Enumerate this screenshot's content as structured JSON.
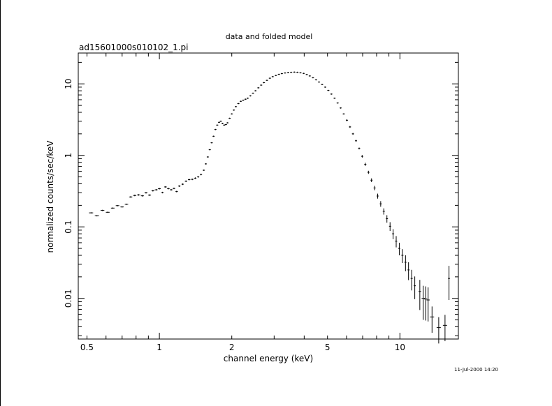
{
  "chart_data": {
    "type": "scatter",
    "title": "data and folded model",
    "subtitle": "ad15601000s010102_1.pi",
    "xlabel": "channel energy (keV)",
    "ylabel": "normalized counts/sec/keV",
    "xscale": "log",
    "yscale": "log",
    "xlim": [
      0.46,
      17.5
    ],
    "ylim": [
      0.0027,
      27
    ],
    "grid": false,
    "x_ticks": [
      {
        "v": 0.5,
        "label": "0.5"
      },
      {
        "v": 1,
        "label": "1"
      },
      {
        "v": 2,
        "label": "2"
      },
      {
        "v": 5,
        "label": "5"
      },
      {
        "v": 10,
        "label": "10"
      }
    ],
    "y_ticks": [
      {
        "v": 0.01,
        "label": "0.01"
      },
      {
        "v": 0.1,
        "label": "0.1"
      },
      {
        "v": 1,
        "label": "1"
      },
      {
        "v": 10,
        "label": "10"
      }
    ],
    "series": [
      {
        "color": "#000000",
        "points": [
          [
            0.52,
            0.157,
            0.02,
            0.02
          ],
          [
            0.55,
            0.143,
            0.02,
            0.02
          ],
          [
            0.58,
            0.17,
            0.018,
            0.02
          ],
          [
            0.61,
            0.16,
            0.018,
            0.02
          ],
          [
            0.64,
            0.183,
            0.017,
            0.02
          ],
          [
            0.67,
            0.198,
            0.017,
            0.02
          ],
          [
            0.7,
            0.19,
            0.016,
            0.02
          ],
          [
            0.73,
            0.207,
            0.016,
            0.02
          ],
          [
            0.76,
            0.262,
            0.015,
            0.025
          ],
          [
            0.79,
            0.275,
            0.015,
            0.025
          ],
          [
            0.82,
            0.28,
            0.015,
            0.025
          ],
          [
            0.85,
            0.272,
            0.014,
            0.025
          ],
          [
            0.88,
            0.3,
            0.014,
            0.025
          ],
          [
            0.91,
            0.278,
            0.014,
            0.025
          ],
          [
            0.94,
            0.32,
            0.013,
            0.025
          ],
          [
            0.97,
            0.33,
            0.013,
            0.025
          ],
          [
            1.0,
            0.342,
            0.013,
            0.025
          ],
          [
            1.03,
            0.302,
            0.012,
            0.025
          ],
          [
            1.06,
            0.362,
            0.012,
            0.025
          ],
          [
            1.09,
            0.343,
            0.012,
            0.025
          ],
          [
            1.12,
            0.33,
            0.012,
            0.025
          ],
          [
            1.15,
            0.345,
            0.012,
            0.025
          ],
          [
            1.18,
            0.312,
            0.011,
            0.025
          ],
          [
            1.21,
            0.372,
            0.011,
            0.025
          ],
          [
            1.25,
            0.395,
            0.011,
            0.025
          ],
          [
            1.29,
            0.435,
            0.011,
            0.025
          ],
          [
            1.33,
            0.458,
            0.011,
            0.025
          ],
          [
            1.37,
            0.462,
            0.011,
            0.025
          ],
          [
            1.41,
            0.48,
            0.011,
            0.025
          ],
          [
            1.45,
            0.5,
            0.01,
            0.025
          ],
          [
            1.49,
            0.54,
            0.01,
            0.025
          ],
          [
            1.53,
            0.62,
            0.01,
            0.02
          ],
          [
            1.56,
            0.76,
            0.01,
            0.02
          ],
          [
            1.59,
            0.95,
            0.01,
            0.02
          ],
          [
            1.62,
            1.2,
            0.01,
            0.02
          ],
          [
            1.65,
            1.5,
            0.01,
            0.02
          ],
          [
            1.68,
            1.85,
            0.01,
            0.02
          ],
          [
            1.71,
            2.3,
            0.01,
            0.02
          ],
          [
            1.74,
            2.65,
            0.01,
            0.02
          ],
          [
            1.77,
            2.9,
            0.01,
            0.02
          ],
          [
            1.8,
            3.0,
            0.01,
            0.02
          ],
          [
            1.83,
            2.8,
            0.01,
            0.02
          ],
          [
            1.86,
            2.65,
            0.01,
            0.02
          ],
          [
            1.89,
            2.7,
            0.01,
            0.02
          ],
          [
            1.92,
            2.85,
            0.01,
            0.02
          ],
          [
            1.96,
            3.3,
            0.01,
            0.02
          ],
          [
            2.0,
            3.8,
            0.01,
            0.02
          ],
          [
            2.04,
            4.3,
            0.01,
            0.02
          ],
          [
            2.08,
            4.8,
            0.01,
            0.02
          ],
          [
            2.13,
            5.3,
            0.01,
            0.02
          ],
          [
            2.18,
            5.7,
            0.01,
            0.02
          ],
          [
            2.23,
            5.9,
            0.01,
            0.02
          ],
          [
            2.28,
            6.1,
            0.01,
            0.02
          ],
          [
            2.33,
            6.3,
            0.01,
            0.02
          ],
          [
            2.39,
            6.8,
            0.01,
            0.02
          ],
          [
            2.45,
            7.4,
            0.01,
            0.02
          ],
          [
            2.51,
            8.0,
            0.01,
            0.02
          ],
          [
            2.58,
            8.8,
            0.01,
            0.02
          ],
          [
            2.65,
            9.6,
            0.01,
            0.02
          ],
          [
            2.72,
            10.4,
            0.01,
            0.02
          ],
          [
            2.8,
            11.2,
            0.01,
            0.02
          ],
          [
            2.88,
            12.0,
            0.01,
            0.02
          ],
          [
            2.96,
            12.6,
            0.01,
            0.02
          ],
          [
            3.05,
            13.1,
            0.01,
            0.02
          ],
          [
            3.14,
            13.6,
            0.01,
            0.02
          ],
          [
            3.23,
            13.9,
            0.01,
            0.02
          ],
          [
            3.33,
            14.2,
            0.01,
            0.02
          ],
          [
            3.43,
            14.4,
            0.01,
            0.02
          ],
          [
            3.53,
            14.5,
            0.01,
            0.02
          ],
          [
            3.64,
            14.6,
            0.01,
            0.02
          ],
          [
            3.75,
            14.5,
            0.01,
            0.02
          ],
          [
            3.86,
            14.3,
            0.01,
            0.02
          ],
          [
            3.98,
            14.0,
            0.01,
            0.02
          ],
          [
            4.1,
            13.5,
            0.01,
            0.02
          ],
          [
            4.22,
            12.9,
            0.01,
            0.02
          ],
          [
            4.35,
            12.2,
            0.01,
            0.02
          ],
          [
            4.48,
            11.4,
            0.01,
            0.02
          ],
          [
            4.61,
            10.6,
            0.01,
            0.02
          ],
          [
            4.75,
            9.8,
            0.01,
            0.02
          ],
          [
            4.89,
            9.0,
            0.01,
            0.02
          ],
          [
            5.04,
            8.1,
            0.01,
            0.02
          ],
          [
            5.19,
            7.2,
            0.01,
            0.02
          ],
          [
            5.35,
            6.3,
            0.01,
            0.02
          ],
          [
            5.51,
            5.4,
            0.01,
            0.02
          ],
          [
            5.67,
            4.6,
            0.01,
            0.02
          ],
          [
            5.84,
            3.8,
            0.01,
            0.02
          ],
          [
            6.02,
            3.1,
            0.01,
            0.03
          ],
          [
            6.2,
            2.5,
            0.01,
            0.03
          ],
          [
            6.38,
            2.0,
            0.01,
            0.03
          ],
          [
            6.57,
            1.6,
            0.01,
            0.03
          ],
          [
            6.77,
            1.25,
            0.01,
            0.03
          ],
          [
            6.97,
            0.97,
            0.01,
            0.04
          ],
          [
            7.18,
            0.75,
            0.01,
            0.05
          ],
          [
            7.4,
            0.58,
            0.01,
            0.05
          ],
          [
            7.62,
            0.45,
            0.01,
            0.06
          ],
          [
            7.85,
            0.35,
            0.01,
            0.07
          ],
          [
            8.08,
            0.27,
            0.01,
            0.08
          ],
          [
            8.32,
            0.21,
            0.01,
            0.09
          ],
          [
            8.57,
            0.165,
            0.01,
            0.1
          ],
          [
            8.83,
            0.13,
            0.01,
            0.12
          ],
          [
            9.1,
            0.102,
            0.01,
            0.14
          ],
          [
            9.37,
            0.08,
            0.01,
            0.16
          ],
          [
            9.65,
            0.063,
            0.01,
            0.18
          ],
          [
            9.94,
            0.05,
            0.01,
            0.2
          ],
          [
            10.24,
            0.04,
            0.01,
            0.22
          ],
          [
            10.55,
            0.032,
            0.01,
            0.25
          ],
          [
            10.86,
            0.025,
            0.01,
            0.28
          ],
          [
            11.19,
            0.019,
            0.01,
            0.32
          ],
          [
            11.53,
            0.015,
            0.01,
            0.35
          ],
          [
            12.1,
            0.0125,
            0.012,
            0.45
          ],
          [
            12.5,
            0.01,
            0.015,
            0.5
          ],
          [
            12.8,
            0.0098,
            0.015,
            0.5
          ],
          [
            13.1,
            0.0095,
            0.015,
            0.5
          ],
          [
            13.6,
            0.0055,
            0.02,
            0.4
          ],
          [
            14.5,
            0.0039,
            0.02,
            0.4
          ],
          [
            15.4,
            0.0042,
            0.02,
            0.4
          ],
          [
            16.0,
            0.019,
            0.01,
            0.5
          ]
        ]
      }
    ]
  },
  "timestamp": "11-Jul-2000 14:20"
}
